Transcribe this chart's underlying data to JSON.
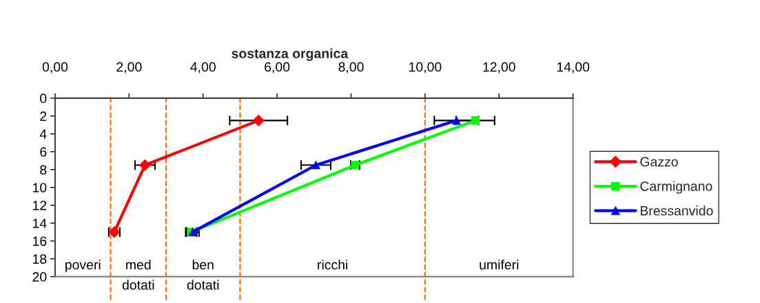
{
  "chart_data": {
    "type": "line",
    "title": "sostanza organica",
    "xlim": [
      0,
      14
    ],
    "xticks": [
      {
        "value": 0,
        "label": "0,00"
      },
      {
        "value": 2,
        "label": "2,00"
      },
      {
        "value": 4,
        "label": "4,00"
      },
      {
        "value": 6,
        "label": "6,00"
      },
      {
        "value": 8,
        "label": "8,00"
      },
      {
        "value": 10,
        "label": "10,00"
      },
      {
        "value": 12,
        "label": "12,00"
      },
      {
        "value": 14,
        "label": "14,00"
      }
    ],
    "ylim": [
      20,
      0
    ],
    "yticks": [
      0,
      2,
      4,
      6,
      8,
      10,
      12,
      14,
      16,
      18,
      20
    ],
    "series": [
      {
        "name": "Gazzo",
        "color": "#ff0000",
        "marker": "diamond",
        "x": [
          5.5,
          2.43,
          1.6
        ],
        "values": [
          2.5,
          7.5,
          15
        ],
        "xerrors": [
          0.78,
          0.27,
          0.15
        ]
      },
      {
        "name": "Carmignano",
        "color": "#00ff00",
        "marker": "square",
        "x": [
          11.36,
          8.11,
          3.68
        ],
        "values": [
          2.5,
          7.5,
          15
        ],
        "xerrors": [
          0.52,
          0.12,
          0.15
        ]
      },
      {
        "name": "Bressanvido",
        "color": "#0000ff",
        "marker": "triangle",
        "x": [
          10.85,
          7.05,
          3.72
        ],
        "values": [
          2.5,
          7.5,
          15
        ],
        "xerrors": [
          0.6,
          0.4,
          0.17
        ]
      }
    ],
    "ref_lines": [
      {
        "axis": "x",
        "value": 1.5,
        "color": "#ff6600",
        "line_style": "dashed"
      },
      {
        "axis": "x",
        "value": 3,
        "color": "#ff6600",
        "line_style": "dashed"
      },
      {
        "axis": "x",
        "value": 5,
        "color": "#ff6600",
        "line_style": "dashed"
      },
      {
        "axis": "x",
        "value": 10,
        "color": "#ff6600",
        "line_style": "dashed"
      }
    ],
    "annotations": [
      "poveri",
      "med\ndotati",
      "ben\ndotati",
      "ricchi",
      "umiferi"
    ],
    "grid": false,
    "legend": "right"
  }
}
